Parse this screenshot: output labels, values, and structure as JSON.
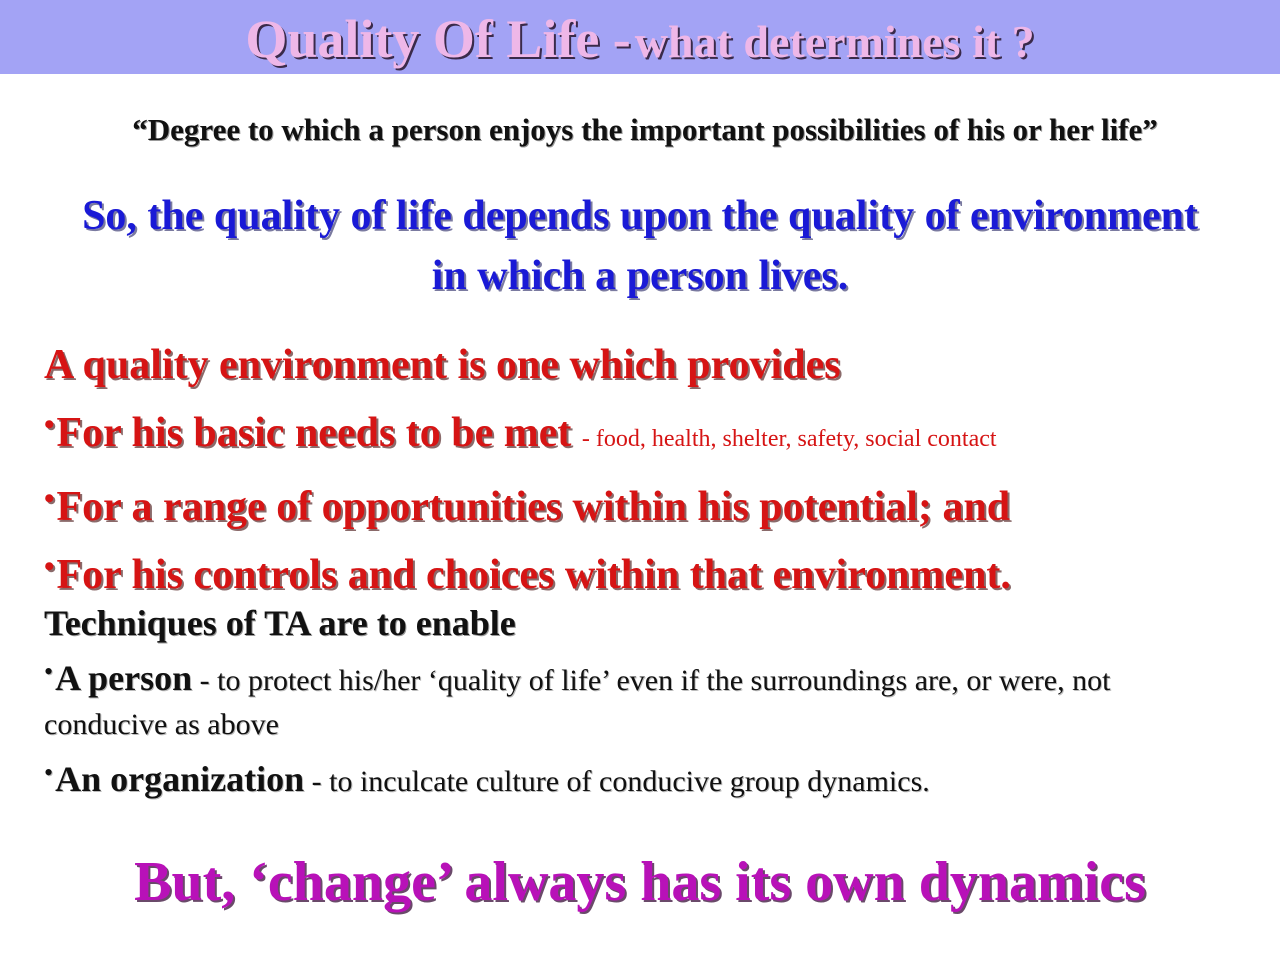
{
  "title": {
    "main": "Quality Of Life -",
    "sub": "what determines it ?"
  },
  "quote": "“Degree to which a person enjoys the important possibilities of his or her life”",
  "conclusion": "So, the quality of life depends upon the quality of environment in which a person lives.",
  "environment": {
    "heading": "A quality environment is one which provides",
    "items": [
      {
        "text": "For his basic needs to be met",
        "note": "- food, health, shelter, safety, social contact"
      },
      {
        "text": "For a range of opportunities within his potential; and",
        "note": ""
      },
      {
        "text": "For his controls and choices within that environment.",
        "note": ""
      }
    ]
  },
  "techniques": {
    "heading": "Techniques of TA  are to enable",
    "items": [
      {
        "lead": "A person",
        "text": "- to protect his/her ‘quality of life’ even if the surroundings are, or were, not conducive as above"
      },
      {
        "lead": "An organization",
        "text": "- to inculcate culture of conducive group dynamics."
      }
    ]
  },
  "closing": "But, ‘change’ always has its own dynamics",
  "colors": {
    "title_bar": "#a3a3f5",
    "title_text": "#eeb7e8",
    "conclusion": "#1a1ad6",
    "environment": "#d61414",
    "closing": "#b811b8"
  }
}
